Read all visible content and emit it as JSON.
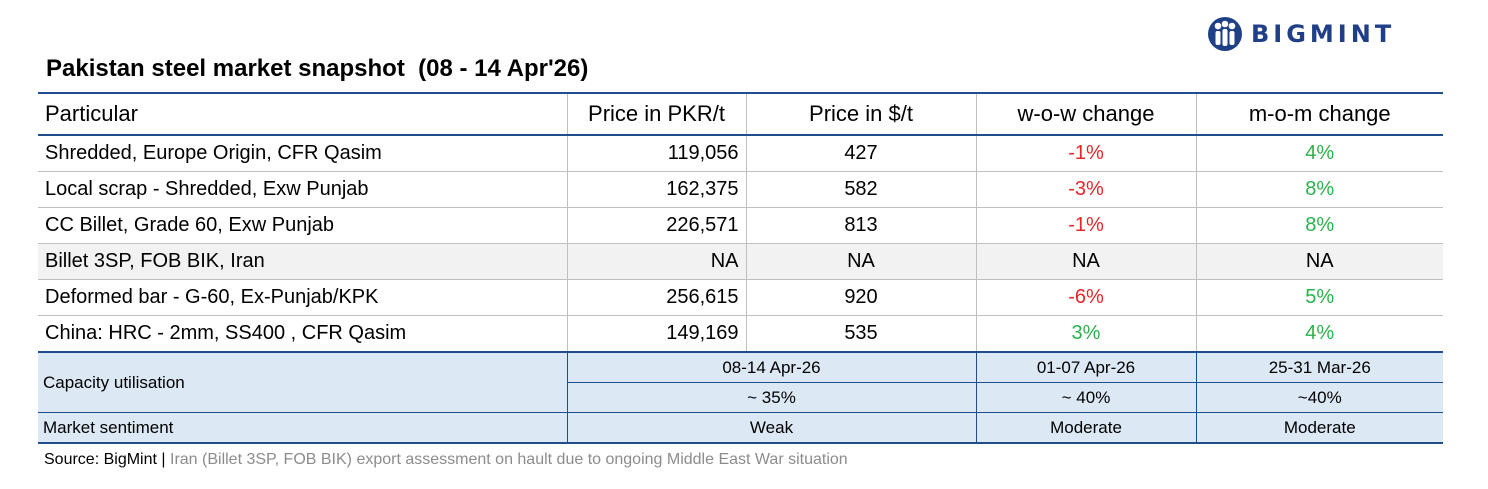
{
  "logo": {
    "text": "BIGMINT",
    "color": "#1f3f86"
  },
  "title": "Pakistan steel market snapshot  (08 - 14 Apr'26)",
  "table": {
    "headers": [
      "Particular",
      "Price in PKR/t",
      "Price in $/t",
      "w-o-w change",
      "m-o-m change"
    ],
    "rows": [
      {
        "particular": "Shredded, Europe Origin, CFR Qasim",
        "pkr": "119,056",
        "usd": "427",
        "wow": "-1%",
        "mom": "4%"
      },
      {
        "particular": "Local scrap - Shredded, Exw Punjab",
        "pkr": "162,375",
        "usd": "582",
        "wow": "-3%",
        "mom": "8%"
      },
      {
        "particular": "CC Billet, Grade 60, Exw Punjab",
        "pkr": "226,571",
        "usd": "813",
        "wow": "-1%",
        "mom": "8%"
      },
      {
        "particular": "Billet 3SP, FOB BIK, Iran",
        "pkr": "NA",
        "usd": "NA",
        "wow": "NA",
        "mom": "NA"
      },
      {
        "particular": "Deformed bar - G-60, Ex-Punjab/KPK",
        "pkr": "256,615",
        "usd": "920",
        "wow": "-6%",
        "mom": "5%"
      },
      {
        "particular": "China: HRC - 2mm, SS400 , CFR Qasim",
        "pkr": "149,169",
        "usd": "535",
        "wow": "3%",
        "mom": "4%"
      }
    ],
    "capacity": {
      "label": "Capacity utilisation",
      "periods": [
        "08-14 Apr-26",
        "01-07 Apr-26",
        "25-31 Mar-26"
      ],
      "values": [
        "~ 35%",
        "~ 40%",
        "~40%"
      ]
    },
    "sentiment": {
      "label": "Market sentiment",
      "values": [
        "Weak",
        "Moderate",
        "Moderate"
      ]
    }
  },
  "source": {
    "label": "Source: BigMint",
    "separator": "|",
    "note": "Iran (Billet 3SP, FOB BIK) export assessment on hault due to ongoing Middle East War situation"
  },
  "colors": {
    "accent": "#1f4e8c",
    "negative": "#e8262a",
    "positive": "#2bb24c",
    "footer_bg": "#dce9f5"
  }
}
